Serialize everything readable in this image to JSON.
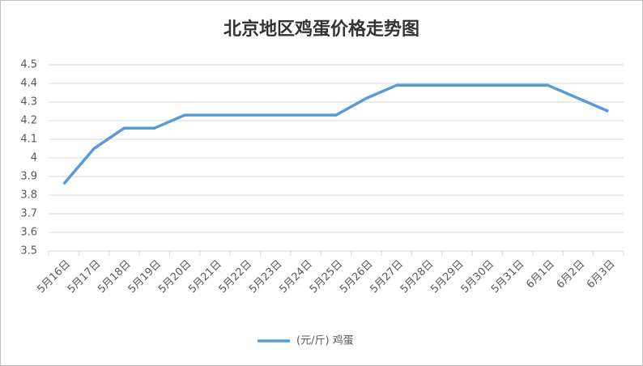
{
  "chart_data": {
    "type": "line",
    "title": "北京地区鸡蛋价格走势图",
    "categories": [
      "5月16日",
      "5月17日",
      "5月18日",
      "5月19日",
      "5月20日",
      "5月21日",
      "5月22日",
      "5月23日",
      "5月24日",
      "5月25日",
      "5月26日",
      "5月27日",
      "5月28日",
      "5月29日",
      "5月30日",
      "5月31日",
      "6月1日",
      "6月2日",
      "6月3日"
    ],
    "series": [
      {
        "name": "(元/斤) 鸡蛋",
        "color": "#5b9bd5",
        "values": [
          3.86,
          4.05,
          4.16,
          4.16,
          4.23,
          4.23,
          4.23,
          4.23,
          4.23,
          4.23,
          4.32,
          4.39,
          4.39,
          4.39,
          4.39,
          4.39,
          4.39,
          4.32,
          4.25
        ]
      }
    ],
    "ylim": [
      3.5,
      4.5
    ],
    "yticks": [
      3.5,
      3.6,
      3.7,
      3.8,
      3.9,
      4,
      4.1,
      4.2,
      4.3,
      4.4,
      4.5
    ],
    "grid": true,
    "legend": "bottom"
  }
}
